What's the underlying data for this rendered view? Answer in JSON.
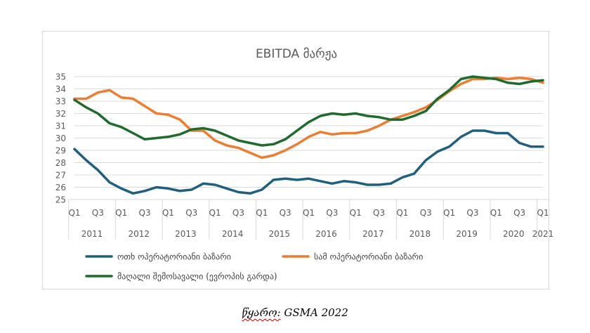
{
  "chart_data": {
    "type": "line",
    "title": "EBITDA მარჟა",
    "xlabel": "",
    "ylabel": "",
    "ylim": [
      25,
      35
    ],
    "yticks": [
      25,
      26,
      27,
      28,
      29,
      30,
      31,
      32,
      33,
      34,
      35
    ],
    "grid": true,
    "legend_position": "bottom",
    "x": [
      "2011 Q1",
      "2011 Q2",
      "2011 Q3",
      "2011 Q4",
      "2012 Q1",
      "2012 Q2",
      "2012 Q3",
      "2012 Q4",
      "2013 Q1",
      "2013 Q2",
      "2013 Q3",
      "2013 Q4",
      "2014 Q1",
      "2014 Q2",
      "2014 Q3",
      "2014 Q4",
      "2015 Q1",
      "2015 Q2",
      "2015 Q3",
      "2015 Q4",
      "2016 Q1",
      "2016 Q2",
      "2016 Q3",
      "2016 Q4",
      "2017 Q1",
      "2017 Q2",
      "2017 Q3",
      "2017 Q4",
      "2018 Q1",
      "2018 Q2",
      "2018 Q3",
      "2018 Q4",
      "2019 Q1",
      "2019 Q2",
      "2019 Q3",
      "2019 Q4",
      "2020 Q1",
      "2020 Q2",
      "2020 Q3",
      "2020 Q4",
      "2021 Q1"
    ],
    "quarter_tick_labels": [
      "Q1",
      "Q3",
      "Q1",
      "Q3",
      "Q1",
      "Q3",
      "Q1",
      "Q3",
      "Q1",
      "Q3",
      "Q1",
      "Q3",
      "Q1",
      "Q3",
      "Q1",
      "Q3",
      "Q1",
      "Q3",
      "Q1",
      "Q3",
      "Q1"
    ],
    "year_labels": [
      "2011",
      "2012",
      "2013",
      "2014",
      "2015",
      "2016",
      "2017",
      "2018",
      "2019",
      "2020",
      "2021"
    ],
    "series": [
      {
        "name": "ოთხ ოპერატორიანი ბაზარი",
        "color": "#1f5f7f",
        "values": [
          29.1,
          28.2,
          27.4,
          26.4,
          25.9,
          25.5,
          25.7,
          26.0,
          25.9,
          25.7,
          25.8,
          26.3,
          26.2,
          25.9,
          25.6,
          25.5,
          25.8,
          26.6,
          26.7,
          26.6,
          26.7,
          26.5,
          26.3,
          26.5,
          26.4,
          26.2,
          26.2,
          26.3,
          26.8,
          27.1,
          28.2,
          28.9,
          29.3,
          30.1,
          30.6,
          30.6,
          30.4,
          30.4,
          29.6,
          29.3,
          29.3
        ]
      },
      {
        "name": "სამ ოპერატორიანი ბაზარი",
        "color": "#ed7d31",
        "values": [
          33.2,
          33.2,
          33.7,
          33.9,
          33.3,
          33.2,
          32.6,
          32.0,
          31.9,
          31.5,
          30.6,
          30.6,
          29.8,
          29.4,
          29.2,
          28.8,
          28.4,
          28.6,
          29.0,
          29.5,
          30.1,
          30.5,
          30.3,
          30.4,
          30.4,
          30.6,
          31.0,
          31.5,
          31.8,
          32.1,
          32.5,
          33.1,
          33.8,
          34.4,
          34.8,
          34.8,
          34.9,
          34.8,
          34.9,
          34.8,
          34.5
        ]
      },
      {
        "name": "მაღალი შემოსავალი (ევროპის გარდა)",
        "color": "#1e6b2d",
        "values": [
          33.1,
          32.5,
          32.0,
          31.2,
          30.9,
          30.4,
          29.9,
          30.0,
          30.1,
          30.3,
          30.7,
          30.8,
          30.6,
          30.2,
          29.8,
          29.6,
          29.4,
          29.5,
          29.9,
          30.6,
          31.3,
          31.8,
          32.0,
          31.9,
          32.0,
          31.8,
          31.7,
          31.5,
          31.5,
          31.8,
          32.2,
          33.2,
          33.9,
          34.8,
          35.0,
          34.9,
          34.8,
          34.5,
          34.4,
          34.6,
          34.7
        ]
      }
    ]
  },
  "source": {
    "label": "წყარო:",
    "text": " GSMA 2022"
  }
}
